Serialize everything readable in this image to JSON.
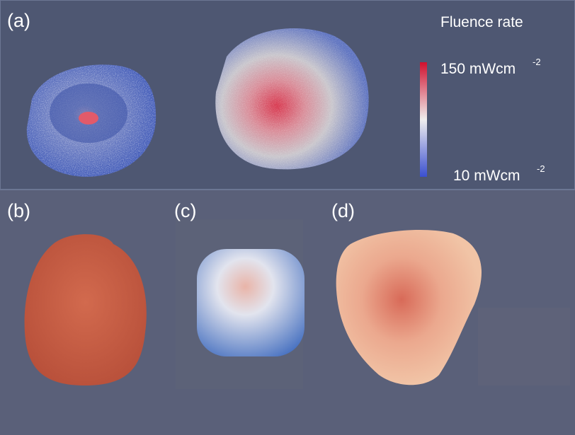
{
  "panels": {
    "a": {
      "label": "(a)"
    },
    "b": {
      "label": "(b)"
    },
    "c": {
      "label": "(c)"
    },
    "d": {
      "label": "(d)"
    }
  },
  "legend": {
    "title": "Fluence rate",
    "max": {
      "text": "150 mWcm",
      "exponent": "-2"
    },
    "min": {
      "text": "10 mWcm",
      "exponent": "-2"
    }
  }
}
